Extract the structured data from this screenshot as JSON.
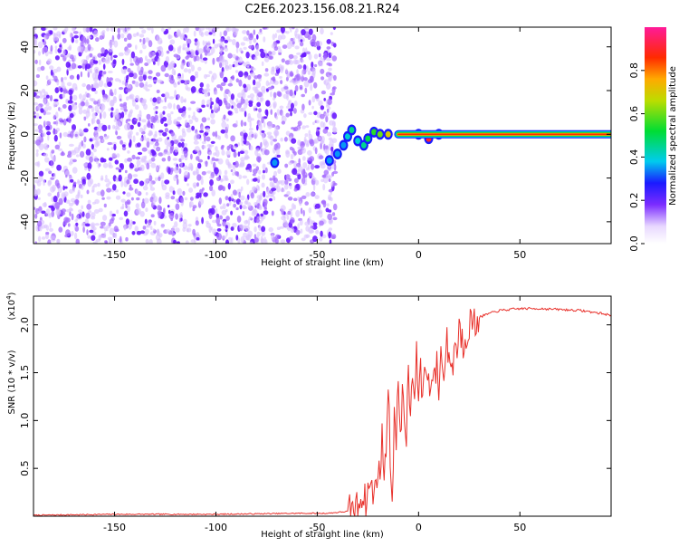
{
  "title": "C2E6.2023.156.08.21.R24",
  "chart_data": [
    {
      "type": "heatmap",
      "xlabel": "Height of straight line (km)",
      "ylabel": "Frequency (Hz)",
      "xlim": [
        -190,
        95
      ],
      "ylim": [
        -50,
        49
      ],
      "x_ticks": [
        -150,
        -100,
        -50,
        0,
        50
      ],
      "y_ticks": [
        -40,
        -20,
        0,
        20,
        40
      ],
      "noise_region": {
        "x": [
          -190,
          -41
        ],
        "y": [
          -50,
          49
        ]
      },
      "signal_line": {
        "x": [
          -10,
          95
        ],
        "y": 0,
        "amplitude": 1.0
      },
      "signal_segments": [
        {
          "x": -71,
          "y": -13,
          "amplitude": 0.35
        },
        {
          "x": -44,
          "y": -12,
          "amplitude": 0.05
        },
        {
          "x": -40,
          "y": -9,
          "amplitude": 0.15
        },
        {
          "x": -37,
          "y": -5,
          "amplitude": 0.3
        },
        {
          "x": -35,
          "y": -1,
          "amplitude": 0.4
        },
        {
          "x": -33,
          "y": 2,
          "amplitude": 0.45
        },
        {
          "x": -30,
          "y": -3,
          "amplitude": 0.4
        },
        {
          "x": -27,
          "y": -5,
          "amplitude": 0.45
        },
        {
          "x": -25,
          "y": -2,
          "amplitude": 0.5
        },
        {
          "x": -22,
          "y": 1,
          "amplitude": 0.55
        },
        {
          "x": -19,
          "y": 0,
          "amplitude": 0.6
        },
        {
          "x": -15,
          "y": 0,
          "amplitude": 0.7
        },
        {
          "x": 0,
          "y": 0,
          "amplitude": 0.8
        },
        {
          "x": 5,
          "y": -2,
          "amplitude": 0.9
        },
        {
          "x": 10,
          "y": 0,
          "amplitude": 0.9
        }
      ],
      "colorbar": {
        "label": "Normalized spectral amplitude",
        "range": [
          0,
          1
        ],
        "ticks": [
          "0.0",
          "0.2",
          "0.4",
          "0.6",
          "0.8"
        ],
        "tick_values": [
          0,
          0.2,
          0.4,
          0.6,
          0.8
        ]
      }
    },
    {
      "type": "line",
      "xlabel": "Height of straight line (km)",
      "ylabel": "SNR (10 * v/v)",
      "y_multiplier": "(x10",
      "y_multiplier_exp": "4",
      "y_multiplier_close": ")",
      "xlim": [
        -190,
        95
      ],
      "ylim": [
        0,
        2.3
      ],
      "x_ticks": [
        -150,
        -100,
        -50,
        0,
        50
      ],
      "y_ticks": [
        0.5,
        1.0,
        1.5,
        2.0
      ],
      "y_tick_labels": [
        "0.5",
        "1.0",
        "1.5",
        "2.0"
      ],
      "series": [
        {
          "color": "#e8302a",
          "x": [
            -190,
            -150,
            -100,
            -60,
            -45,
            -35,
            -30,
            -28,
            -26,
            -24,
            -22,
            -20,
            -19,
            -18,
            -17,
            -16,
            -15,
            -14,
            -13,
            -12,
            -11,
            -10,
            -9,
            -8,
            -7,
            -6,
            -5,
            -4,
            -3,
            -2,
            -1,
            0,
            1,
            2,
            3,
            4,
            5,
            6,
            7,
            8,
            9,
            10,
            11,
            12,
            13,
            14,
            15,
            16,
            17,
            18,
            19,
            20,
            22,
            24,
            26,
            28,
            30,
            35,
            40,
            45,
            50,
            60,
            70,
            80,
            90,
            95
          ],
          "y": [
            0.01,
            0.02,
            0.02,
            0.03,
            0.03,
            0.05,
            0.1,
            0.25,
            0.15,
            0.35,
            0.2,
            0.55,
            0.3,
            1.0,
            0.25,
            0.8,
            1.4,
            0.6,
            0.2,
            1.1,
            0.7,
            1.45,
            0.9,
            1.25,
            1.0,
            0.85,
            1.45,
            1.05,
            1.5,
            1.2,
            1.65,
            1.3,
            1.5,
            1.2,
            1.7,
            1.35,
            1.6,
            1.25,
            1.55,
            1.4,
            1.6,
            1.3,
            1.75,
            1.45,
            1.65,
            1.9,
            1.55,
            1.7,
            1.5,
            1.9,
            1.7,
            2.0,
            1.8,
            1.95,
            2.05,
            2.0,
            2.08,
            2.12,
            2.15,
            2.16,
            2.17,
            2.17,
            2.16,
            2.15,
            2.12,
            2.1
          ]
        }
      ]
    }
  ]
}
